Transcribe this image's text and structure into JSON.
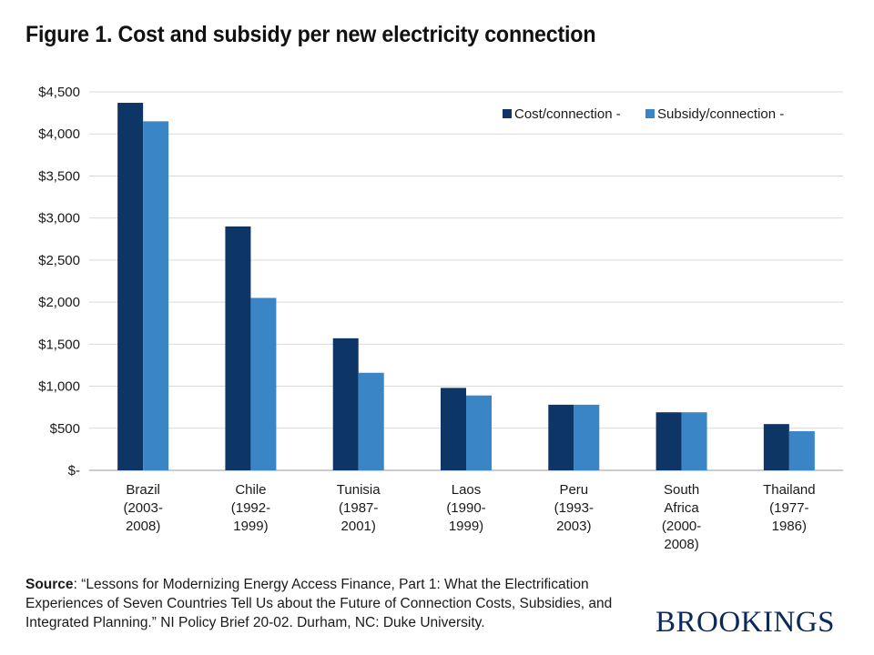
{
  "figure": {
    "title": "Figure 1. Cost and subsidy per new electricity connection",
    "source_label": "Source",
    "source_text": ": “Lessons for Modernizing Energy Access Finance, Part 1: What the Electrification Experiences of Seven Countries Tell Us about the Future of Connection Costs, Subsidies, and Integrated Planning.” NI Policy Brief 20-02. Durham, NC: Duke University.",
    "logo": "BROOKINGS"
  },
  "chart_data": {
    "type": "bar",
    "title": "",
    "xlabel": "",
    "ylabel": "",
    "ylim": [
      0,
      4500
    ],
    "yticks": [
      0,
      500,
      1000,
      1500,
      2000,
      2500,
      3000,
      3500,
      4000,
      4500
    ],
    "ytick_labels": [
      "$-",
      "$500",
      "$1,000",
      "$1,500",
      "$2,000",
      "$2,500",
      "$3,000",
      "$3,500",
      "$4,000",
      "$4,500"
    ],
    "grid": true,
    "legend_position": "top-right",
    "categories": [
      [
        "Brazil",
        "(2003-",
        "2008)"
      ],
      [
        "Chile",
        "(1992-",
        "1999)"
      ],
      [
        "Tunisia",
        "(1987-",
        "2001)"
      ],
      [
        "Laos",
        "(1990-",
        "1999)"
      ],
      [
        "Peru",
        "(1993-",
        "2003)"
      ],
      [
        "South",
        "Africa",
        "(2000-",
        "2008)"
      ],
      [
        "Thailand",
        "(1977-",
        "1986)"
      ]
    ],
    "series": [
      {
        "name": "Cost/connection -",
        "color": "#0d3566",
        "values": [
          4370,
          2900,
          1570,
          980,
          780,
          690,
          550
        ]
      },
      {
        "name": "Subsidy/connection -",
        "color": "#3a85c6",
        "values": [
          4150,
          2050,
          1160,
          890,
          780,
          690,
          465
        ]
      }
    ]
  }
}
